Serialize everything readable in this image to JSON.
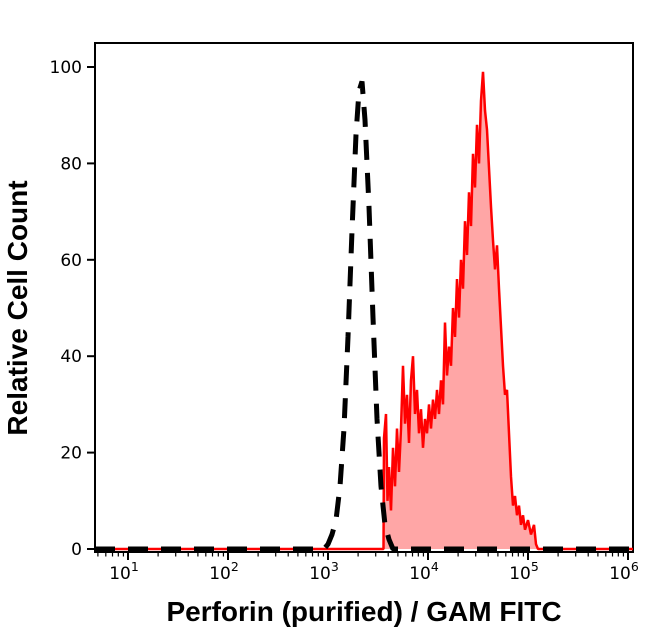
{
  "chart_data": {
    "type": "area",
    "subtype": "flow-cytometry-histogram-overlay",
    "title": "",
    "xlabel": "Perforin (purified) / GAM FITC",
    "ylabel": "Relative Cell Count",
    "x_scale": "log10",
    "grid": false,
    "legend": "none",
    "x_axis": {
      "min_log10": 0.67,
      "max_log10": 6.05,
      "tick_base": "10",
      "tick_exponents": [
        "1",
        "2",
        "3",
        "4",
        "5",
        "6"
      ]
    },
    "y_axis": {
      "min": 0,
      "max": 105,
      "tick_labels": [
        "0",
        "20",
        "40",
        "60",
        "80",
        "100"
      ],
      "tick_values": [
        0,
        20,
        40,
        60,
        80,
        100
      ]
    },
    "series": [
      {
        "name": "red-filled-sample-histogram",
        "style": "filled-outline",
        "color": "#ff0000",
        "fill": "rgba(255,0,0,0.35)",
        "line_width": 2.5,
        "peak_value": 99,
        "peak_log10x": 4.55,
        "points_log10x_value": [
          [
            0.67,
            0
          ],
          [
            3.555,
            0
          ],
          [
            3.56,
            23
          ],
          [
            3.58,
            28
          ],
          [
            3.595,
            10
          ],
          [
            3.61,
            17
          ],
          [
            3.63,
            8
          ],
          [
            3.65,
            21
          ],
          [
            3.67,
            13
          ],
          [
            3.69,
            25
          ],
          [
            3.71,
            16
          ],
          [
            3.73,
            25
          ],
          [
            3.75,
            38
          ],
          [
            3.77,
            26
          ],
          [
            3.79,
            32
          ],
          [
            3.81,
            22
          ],
          [
            3.83,
            35
          ],
          [
            3.85,
            40
          ],
          [
            3.87,
            28
          ],
          [
            3.89,
            33
          ],
          [
            3.91,
            24
          ],
          [
            3.93,
            29
          ],
          [
            3.95,
            21
          ],
          [
            3.97,
            27
          ],
          [
            3.99,
            24
          ],
          [
            4.01,
            30
          ],
          [
            4.03,
            25
          ],
          [
            4.05,
            31
          ],
          [
            4.07,
            27
          ],
          [
            4.09,
            33
          ],
          [
            4.11,
            28
          ],
          [
            4.13,
            35
          ],
          [
            4.15,
            30
          ],
          [
            4.17,
            47
          ],
          [
            4.19,
            36
          ],
          [
            4.21,
            42
          ],
          [
            4.23,
            38
          ],
          [
            4.25,
            50
          ],
          [
            4.27,
            44
          ],
          [
            4.29,
            56
          ],
          [
            4.31,
            48
          ],
          [
            4.33,
            60
          ],
          [
            4.35,
            54
          ],
          [
            4.37,
            68
          ],
          [
            4.39,
            61
          ],
          [
            4.41,
            74
          ],
          [
            4.43,
            67
          ],
          [
            4.45,
            82
          ],
          [
            4.47,
            75
          ],
          [
            4.49,
            88
          ],
          [
            4.51,
            80
          ],
          [
            4.53,
            93
          ],
          [
            4.55,
            99
          ],
          [
            4.57,
            91
          ],
          [
            4.59,
            87
          ],
          [
            4.61,
            79
          ],
          [
            4.63,
            71
          ],
          [
            4.65,
            64
          ],
          [
            4.67,
            58
          ],
          [
            4.69,
            63
          ],
          [
            4.71,
            54
          ],
          [
            4.73,
            46
          ],
          [
            4.75,
            38
          ],
          [
            4.77,
            32
          ],
          [
            4.79,
            33
          ],
          [
            4.81,
            24
          ],
          [
            4.83,
            15
          ],
          [
            4.85,
            9
          ],
          [
            4.87,
            11
          ],
          [
            4.89,
            7
          ],
          [
            4.91,
            9
          ],
          [
            4.93,
            5
          ],
          [
            4.95,
            7
          ],
          [
            4.97,
            4
          ],
          [
            5.0,
            6
          ],
          [
            5.03,
            3
          ],
          [
            5.06,
            5
          ],
          [
            5.08,
            1
          ],
          [
            5.1,
            0
          ],
          [
            6.05,
            0
          ]
        ]
      },
      {
        "name": "black-dashed-control-histogram",
        "style": "dashed-line",
        "color": "#000000",
        "line_width": 5,
        "dash_pattern": [
          20,
          13
        ],
        "peak_value": 97,
        "peak_log10x": 3.34,
        "points_log10x_value": [
          [
            0.67,
            0
          ],
          [
            2.96,
            0
          ],
          [
            3.0,
            1
          ],
          [
            3.04,
            3
          ],
          [
            3.08,
            6
          ],
          [
            3.12,
            13
          ],
          [
            3.16,
            25
          ],
          [
            3.2,
            44
          ],
          [
            3.24,
            66
          ],
          [
            3.28,
            86
          ],
          [
            3.31,
            95
          ],
          [
            3.34,
            97
          ],
          [
            3.37,
            89
          ],
          [
            3.41,
            71
          ],
          [
            3.45,
            48
          ],
          [
            3.49,
            27
          ],
          [
            3.53,
            13
          ],
          [
            3.57,
            5
          ],
          [
            3.61,
            2
          ],
          [
            3.65,
            0
          ],
          [
            6.05,
            0
          ]
        ]
      }
    ]
  }
}
